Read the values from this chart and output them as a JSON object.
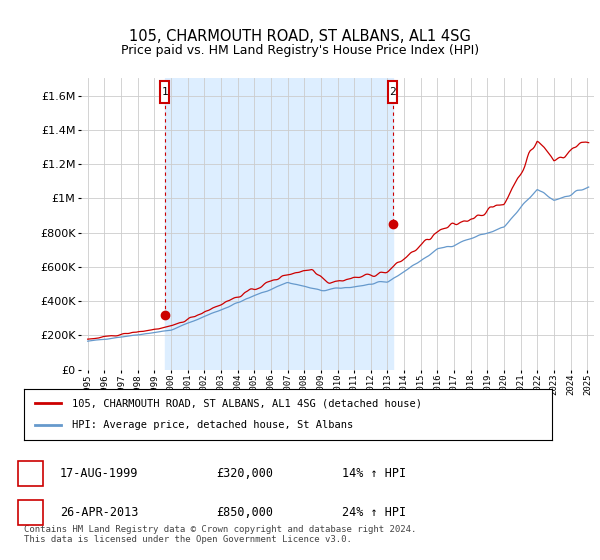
{
  "title": "105, CHARMOUTH ROAD, ST ALBANS, AL1 4SG",
  "subtitle": "Price paid vs. HM Land Registry's House Price Index (HPI)",
  "red_label": "105, CHARMOUTH ROAD, ST ALBANS, AL1 4SG (detached house)",
  "blue_label": "HPI: Average price, detached house, St Albans",
  "footer": "Contains HM Land Registry data © Crown copyright and database right 2024.\nThis data is licensed under the Open Government Licence v3.0.",
  "purchase1_year": 1999.63,
  "purchase1_price": 320000,
  "purchase2_year": 2013.32,
  "purchase2_price": 850000,
  "ylim": [
    0,
    1700000
  ],
  "xlim_start": 1994.6,
  "xlim_end": 2025.4,
  "background_color": "#ffffff",
  "grid_color": "#cccccc",
  "red_color": "#cc0000",
  "blue_color": "#6699cc",
  "shade_color": "#ddeeff"
}
